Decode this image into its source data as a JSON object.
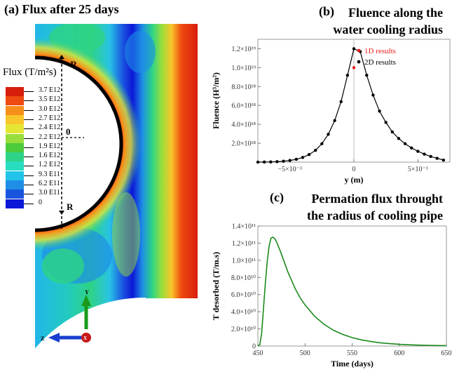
{
  "panel_a": {
    "label": "(a)",
    "title": "Flux after 25 days",
    "legend_title": "Flux (T/m²s)",
    "legend": [
      {
        "label": "3.7 E12",
        "color": "#d71e0c"
      },
      {
        "label": "3.5 E12",
        "color": "#ef4a10"
      },
      {
        "label": "3.0 E12",
        "color": "#f7901a"
      },
      {
        "label": "2.7 E12",
        "color": "#f8c52a"
      },
      {
        "label": "2.4 E12",
        "color": "#e4e634"
      },
      {
        "label": "2.2 E12",
        "color": "#9ade3c"
      },
      {
        "label": "1.9 E12",
        "color": "#4ccc3c"
      },
      {
        "label": "1.6 E12",
        "color": "#2dd487"
      },
      {
        "label": "1.2 E12",
        "color": "#28dcc0"
      },
      {
        "label": "9.3 E11",
        "color": "#22c3ea"
      },
      {
        "label": "6.2 E11",
        "color": "#1e8ee6"
      },
      {
        "label": "3.0 E11",
        "color": "#1a55e0"
      },
      {
        "label": "0",
        "color": "#0c18d8"
      }
    ],
    "markers": {
      "top": "-R",
      "center": "0",
      "bottom": "R"
    },
    "axes": {
      "y": "Y",
      "z": "Z",
      "x": "X"
    }
  },
  "chart_data": [
    {
      "type": "line",
      "panel_label": "(b)",
      "title": "Fluence along the water cooling radius",
      "xlabel": "y (m)",
      "ylabel": "Fluence (H³/m²)",
      "xlim": [
        -0.0075,
        0.0075
      ],
      "ylim": [
        0,
        1.3e+19
      ],
      "xticks": [
        {
          "value": -0.005,
          "label": "−5×10⁻³"
        },
        {
          "value": 0,
          "label": "0"
        },
        {
          "value": 0.005,
          "label": "5×10⁻³"
        }
      ],
      "yticks": [
        {
          "value": 2e+18,
          "label": "2.0×10¹⁸"
        },
        {
          "value": 4e+18,
          "label": "4.0×10¹⁸"
        },
        {
          "value": 6e+18,
          "label": "6.0×10¹⁸"
        },
        {
          "value": 8e+18,
          "label": "8.0×10¹⁸"
        },
        {
          "value": 1e+19,
          "label": "1.0×10¹⁹"
        },
        {
          "value": 1.2e+19,
          "label": "1.2×10¹⁹"
        }
      ],
      "legend_placement": "top-right",
      "series": [
        {
          "name": "1D results",
          "color": "#e8191a",
          "kind": "points",
          "x": [
            0.0
          ],
          "y": [
            1e+19
          ]
        },
        {
          "name": "2D results",
          "color": "#000000",
          "kind": "line+points",
          "x": [
            -0.0075,
            -0.007,
            -0.0065,
            -0.006,
            -0.0055,
            -0.005,
            -0.0045,
            -0.004,
            -0.0035,
            -0.003,
            -0.0025,
            -0.002,
            -0.0015,
            -0.001,
            -0.0005,
            0.0,
            0.0005,
            0.001,
            0.0015,
            0.002,
            0.0025,
            0.003,
            0.0035,
            0.004,
            0.0045,
            0.005,
            0.0055,
            0.006,
            0.0065,
            0.007
          ],
          "y": [
            0.0,
            1e+16,
            2.5e+16,
            5e+16,
            1e+17,
            1.8e+17,
            3e+17,
            5e+17,
            8e+17,
            1.25e+18,
            1.95e+18,
            2.95e+18,
            4.4e+18,
            6.4e+18,
            9.2e+18,
            1.2e+19,
            1.17e+19,
            9.2e+18,
            7.1e+18,
            5.4e+18,
            4.2e+18,
            3.2e+18,
            2.5e+18,
            1.95e+18,
            1.5e+18,
            1.15e+18,
            8.5e+17,
            6e+17,
            4e+17,
            2.2e+17
          ]
        }
      ]
    },
    {
      "type": "line",
      "panel_label": "(c)",
      "title": "Permation flux throught the radius of cooling pipe",
      "xlabel": "Time (days)",
      "ylabel": "T desorbed (T/m.s)",
      "xlim": [
        450,
        650
      ],
      "ylim": [
        0,
        140000000000.0
      ],
      "xticks": [
        {
          "value": 450,
          "label": "450"
        },
        {
          "value": 500,
          "label": "500"
        },
        {
          "value": 550,
          "label": "550"
        },
        {
          "value": 600,
          "label": "600"
        },
        {
          "value": 650,
          "label": "650"
        }
      ],
      "yticks": [
        {
          "value": 0,
          "label": "0"
        },
        {
          "value": 20000000000.0,
          "label": "2.0×10¹⁰"
        },
        {
          "value": 40000000000.0,
          "label": "4.0×10¹⁰"
        },
        {
          "value": 60000000000.0,
          "label": "6.0×10¹⁰"
        },
        {
          "value": 80000000000.0,
          "label": "8.0×10¹⁰"
        },
        {
          "value": 100000000000.0,
          "label": "1.0×10¹¹"
        },
        {
          "value": 120000000000.0,
          "label": "1.2×10¹¹"
        },
        {
          "value": 140000000000.0,
          "label": "1.4×10¹¹"
        }
      ],
      "series": [
        {
          "color": "#1a8a1a",
          "kind": "line",
          "x": [
            450,
            452,
            454,
            456,
            458,
            460,
            462,
            464,
            466,
            468,
            470,
            474,
            478,
            482,
            486,
            490,
            495,
            500,
            510,
            520,
            530,
            540,
            550,
            560,
            570,
            580,
            590,
            600,
            610,
            620,
            630,
            640,
            650
          ],
          "y": [
            0,
            1500000000.0,
            15000000000.0,
            45000000000.0,
            75000000000.0,
            100000000000.0,
            117000000000.0,
            126000000000.0,
            127000000000.0,
            125000000000.0,
            121000000000.0,
            110000000000.0,
            98000000000.0,
            86000000000.0,
            76000000000.0,
            66000000000.0,
            56000000000.0,
            48000000000.0,
            35000000000.0,
            25500000000.0,
            18500000000.0,
            13500000000.0,
            9800000000.0,
            7100000000.0,
            5200000000.0,
            3800000000.0,
            2800000000.0,
            2000000000.0,
            1500000000.0,
            1100000000.0,
            800000000.0,
            600000000.0,
            400000000.0
          ]
        }
      ]
    }
  ]
}
